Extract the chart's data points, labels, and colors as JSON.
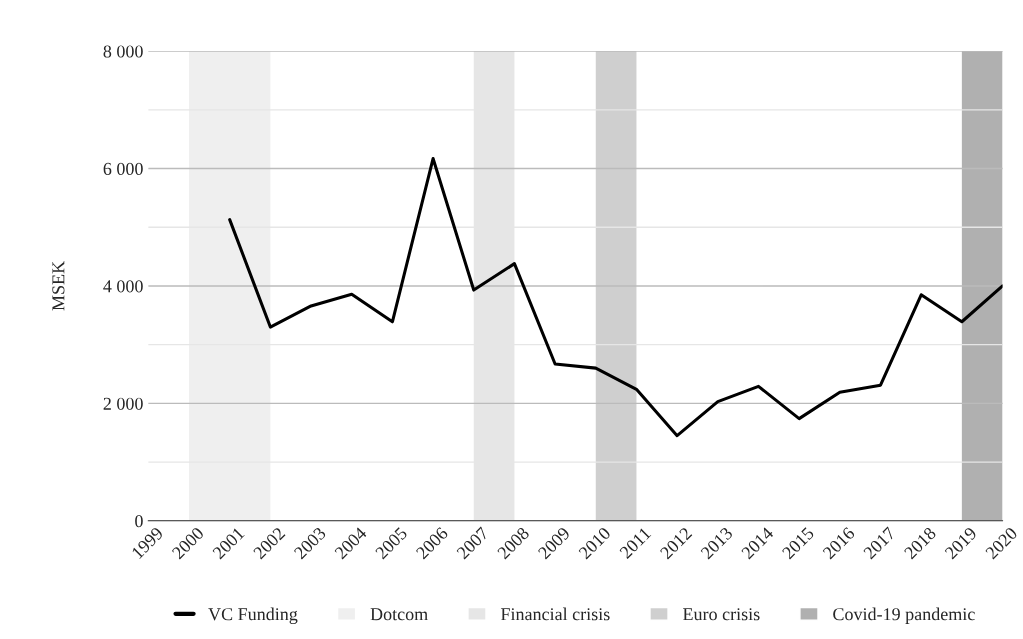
{
  "chart_data": {
    "type": "line",
    "ylabel": "MSEK",
    "x": [
      2001,
      2002,
      2003,
      2004,
      2005,
      2006,
      2007,
      2008,
      2009,
      2010,
      2011,
      2012,
      2013,
      2014,
      2015,
      2016,
      2017,
      2018,
      2019,
      2020
    ],
    "series": [
      {
        "name": "VC Funding",
        "color": "#000000",
        "values": [
          5130,
          3300,
          3660,
          3860,
          3390,
          6170,
          3930,
          4380,
          2670,
          2600,
          2240,
          1450,
          2030,
          2290,
          1740,
          2190,
          2310,
          3850,
          3390,
          4000
        ]
      }
    ],
    "xlim": [
      1999,
      2020
    ],
    "xticks": [
      1999,
      2000,
      2001,
      2002,
      2003,
      2004,
      2005,
      2006,
      2007,
      2008,
      2009,
      2010,
      2011,
      2012,
      2013,
      2014,
      2015,
      2016,
      2017,
      2018,
      2019,
      2020
    ],
    "ylim": [
      0,
      8000
    ],
    "yticks": [
      0,
      {
        "value": 1000,
        "label": null
      },
      {
        "value": 2000,
        "label": "2 000"
      },
      {
        "value": 3000,
        "label": null
      },
      {
        "value": 4000,
        "label": "4 000"
      },
      {
        "value": 5000,
        "label": null
      },
      {
        "value": 6000,
        "label": "6 000"
      },
      {
        "value": 7000,
        "label": null
      },
      {
        "value": 8000,
        "label": "8 000"
      }
    ],
    "bands": [
      {
        "axis": "x",
        "from": 2000,
        "to": 2002,
        "label": "Dotcom",
        "color": "#efefef"
      },
      {
        "axis": "x",
        "from": 2007,
        "to": 2008,
        "label": "Financial crisis",
        "color": "#e6e6e6"
      },
      {
        "axis": "x",
        "from": 2010,
        "to": 2011,
        "label": "Euro crisis",
        "color": "#cfcfcf"
      },
      {
        "axis": "x",
        "from": 2019,
        "to": 2020,
        "label": "Covid-19 pandemic",
        "color": "#b0b0b0"
      }
    ],
    "grid": "y",
    "legend": "bottom",
    "marker": "none",
    "line_style": "solid"
  }
}
